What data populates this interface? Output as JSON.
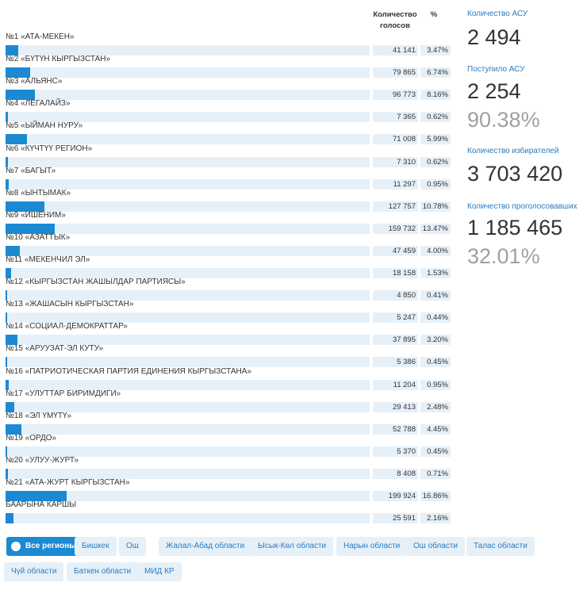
{
  "chart_data": {
    "type": "bar",
    "columns": [
      "Количество голосов",
      "%"
    ],
    "categories": [
      "№1 «АТА-МЕКЕН»",
      "№2 «БҮТҮН КЫРГЫЗСТАН»",
      "№3 «АЛЬЯНС»",
      "№4 «ЛЕГАЛАЙЗ»",
      "№5 «ЫЙМАН НУРУ»",
      "№6 «КҮЧТҮҮ РЕГИОН»",
      "№7 «БАГЫТ»",
      "№8 «ЫНТЫМАК»",
      "№9 «ИШЕНИМ»",
      "№10 «АЗАТТЫК»",
      "№11 «МЕКЕНЧИЛ ЭЛ»",
      "№12 «КЫРГЫЗСТАН ЖАШЫЛДАР ПАРТИЯСЫ»",
      "№13 «ЖАШАСЫН КЫРГЫЗСТАН»",
      "№14 «СОЦИАЛ-ДЕМОКРАТТАР»",
      "№15 «АРУУЗАТ-ЭЛ КУТУ»",
      "№16 «ПАТРИОТИЧЕСКАЯ ПАРТИЯ ЕДИНЕНИЯ КЫРГЫЗСТАНА»",
      "№17 «УЛУТТАР БИРИМДИГИ»",
      "№18 «ЭЛ ҮМҮТҮ»",
      "№19 «ОРДО»",
      "№20 «УЛУУ-ЖУРТ»",
      "№21 «АТА-ЖУРТ КЫРГЫЗСТАН»",
      "БААРЫНА КАРШЫ"
    ],
    "votes": [
      "41 141",
      "79 865",
      "96 773",
      "7 365",
      "71 008",
      "7 310",
      "11 297",
      "127 757",
      "159 732",
      "47 459",
      "18 158",
      "4 850",
      "5 247",
      "37 895",
      "5 386",
      "11 204",
      "29 413",
      "52 788",
      "5 370",
      "8 408",
      "199 924",
      "25 591"
    ],
    "values": [
      3.47,
      6.74,
      8.16,
      0.62,
      5.99,
      0.62,
      0.95,
      10.78,
      13.47,
      4,
      1.53,
      0.41,
      0.44,
      3.2,
      0.45,
      0.95,
      2.48,
      4.45,
      0.45,
      0.71,
      16.86,
      2.16
    ],
    "value_labels": [
      "3.47%",
      "6.74%",
      "8.16%",
      "0.62%",
      "5.99%",
      "0.62%",
      "0.95%",
      "10.78%",
      "13.47%",
      "4.00%",
      "1.53%",
      "0.41%",
      "0.44%",
      "3.20%",
      "0.45%",
      "0.95%",
      "2.48%",
      "4.45%",
      "0.45%",
      "0.71%",
      "16.86%",
      "2.16%"
    ],
    "color": "#1b8ad3",
    "xlim": [
      0,
      100
    ]
  },
  "stats": [
    {
      "label": "Количество АСУ",
      "value": "2 494"
    },
    {
      "label": "Поступило АСУ",
      "value": "2 254",
      "percent": "90.38%"
    },
    {
      "label": "Количество избирателей",
      "value": "3 703 420"
    },
    {
      "label": "Количество проголосовавших",
      "value": "1 185 465",
      "percent": "32.01%"
    }
  ],
  "regions": [
    "Все регионы",
    "Бишкек",
    "Ош",
    "Жалал-Абад области",
    "Ысык-Көл области",
    "Нарын области",
    "Ош области",
    "Талас области",
    "Чүй области",
    "Баткен области",
    "МИД КР"
  ]
}
